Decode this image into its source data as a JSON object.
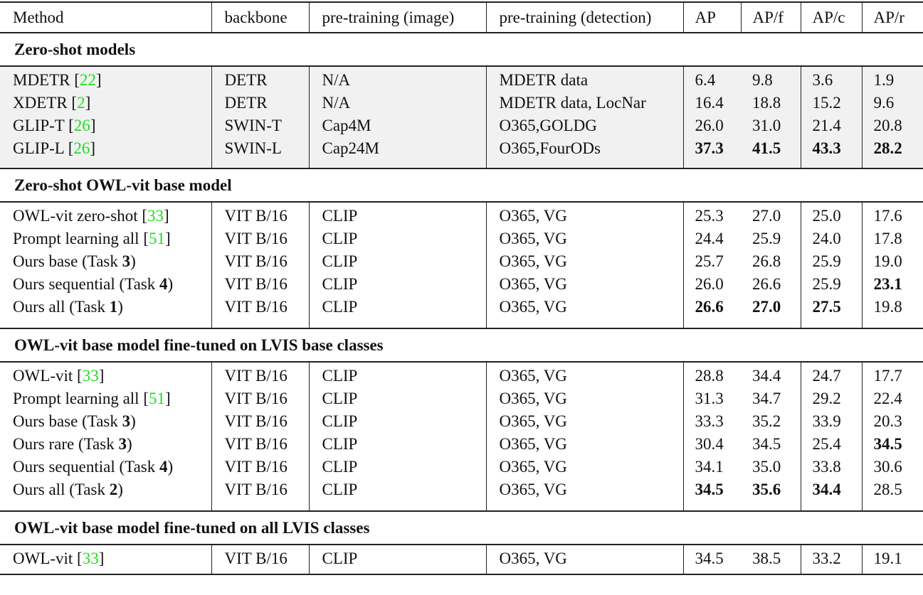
{
  "headers": [
    "Method",
    "backbone",
    "pre-training (image)",
    "pre-training (detection)",
    "AP",
    "AP/f",
    "AP/c",
    "AP/r"
  ],
  "ref_color": "#22dd22",
  "sections": [
    {
      "title": "Zero-shot models",
      "shaded": true,
      "rows": [
        {
          "method": [
            {
              "t": "MDETR ["
            },
            {
              "ref": "22"
            },
            {
              "t": "]"
            }
          ],
          "backbone": "DETR",
          "pre_image": "N/A",
          "pre_detection": "MDETR data",
          "values": [
            "6.4",
            "9.8",
            "3.6",
            "1.9"
          ],
          "bold": [
            false,
            false,
            false,
            false
          ]
        },
        {
          "method": [
            {
              "t": "XDETR ["
            },
            {
              "ref": "2"
            },
            {
              "t": "]"
            }
          ],
          "backbone": "DETR",
          "pre_image": "N/A",
          "pre_detection": "MDETR data, LocNar",
          "values": [
            "16.4",
            "18.8",
            "15.2",
            "9.6"
          ],
          "bold": [
            false,
            false,
            false,
            false
          ]
        },
        {
          "method": [
            {
              "t": "GLIP-T ["
            },
            {
              "ref": "26"
            },
            {
              "t": "]"
            }
          ],
          "backbone": "SWIN-T",
          "pre_image": "Cap4M",
          "pre_detection": "O365,GOLDG",
          "values": [
            "26.0",
            "31.0",
            "21.4",
            "20.8"
          ],
          "bold": [
            false,
            false,
            false,
            false
          ]
        },
        {
          "method": [
            {
              "t": "GLIP-L ["
            },
            {
              "ref": "26"
            },
            {
              "t": "]"
            }
          ],
          "backbone": "SWIN-L",
          "pre_image": "Cap24M",
          "pre_detection": "O365,FourODs",
          "values": [
            "37.3",
            "41.5",
            "43.3",
            "28.2"
          ],
          "bold": [
            true,
            true,
            true,
            true
          ]
        }
      ]
    },
    {
      "title": "Zero-shot OWL-vit base model",
      "shaded": false,
      "rows": [
        {
          "method": [
            {
              "t": "OWL-vit zero-shot ["
            },
            {
              "ref": "33"
            },
            {
              "t": "]"
            }
          ],
          "backbone": "VIT B/16",
          "pre_image": "CLIP",
          "pre_detection": "O365, VG",
          "values": [
            "25.3",
            "27.0",
            "25.0",
            "17.6"
          ],
          "bold": [
            false,
            false,
            false,
            false
          ]
        },
        {
          "method": [
            {
              "t": "Prompt learning all ["
            },
            {
              "ref": "51"
            },
            {
              "t": "]"
            }
          ],
          "backbone": "VIT B/16",
          "pre_image": "CLIP",
          "pre_detection": "O365, VG",
          "values": [
            "24.4",
            "25.9",
            "24.0",
            "17.8"
          ],
          "bold": [
            false,
            false,
            false,
            false
          ]
        },
        {
          "method": [
            {
              "t": "Ours base (Task "
            },
            {
              "b": "3"
            },
            {
              "t": ")"
            }
          ],
          "backbone": "VIT B/16",
          "pre_image": "CLIP",
          "pre_detection": "O365, VG",
          "values": [
            "25.7",
            "26.8",
            "25.9",
            "19.0"
          ],
          "bold": [
            false,
            false,
            false,
            false
          ]
        },
        {
          "method": [
            {
              "t": "Ours sequential (Task "
            },
            {
              "b": "4"
            },
            {
              "t": ")"
            }
          ],
          "backbone": "VIT B/16",
          "pre_image": "CLIP",
          "pre_detection": "O365, VG",
          "values": [
            "26.0",
            "26.6",
            "25.9",
            "23.1"
          ],
          "bold": [
            false,
            false,
            false,
            true
          ]
        },
        {
          "method": [
            {
              "t": "Ours all (Task "
            },
            {
              "b": "1"
            },
            {
              "t": ")"
            }
          ],
          "backbone": "VIT B/16",
          "pre_image": "CLIP",
          "pre_detection": "O365, VG",
          "values": [
            "26.6",
            "27.0",
            "27.5",
            "19.8"
          ],
          "bold": [
            true,
            true,
            true,
            false
          ]
        }
      ]
    },
    {
      "title": "OWL-vit base model fine-tuned on LVIS base classes",
      "shaded": false,
      "rows": [
        {
          "method": [
            {
              "t": "OWL-vit ["
            },
            {
              "ref": "33"
            },
            {
              "t": "]"
            }
          ],
          "backbone": "VIT B/16",
          "pre_image": "CLIP",
          "pre_detection": "O365, VG",
          "values": [
            "28.8",
            "34.4",
            "24.7",
            "17.7"
          ],
          "bold": [
            false,
            false,
            false,
            false
          ]
        },
        {
          "method": [
            {
              "t": "Prompt learning all ["
            },
            {
              "ref": "51"
            },
            {
              "t": "]"
            }
          ],
          "backbone": "VIT B/16",
          "pre_image": "CLIP",
          "pre_detection": "O365, VG",
          "values": [
            "31.3",
            "34.7",
            "29.2",
            "22.4"
          ],
          "bold": [
            false,
            false,
            false,
            false
          ]
        },
        {
          "method": [
            {
              "t": "Ours base (Task "
            },
            {
              "b": "3"
            },
            {
              "t": ")"
            }
          ],
          "backbone": "VIT B/16",
          "pre_image": "CLIP",
          "pre_detection": "O365, VG",
          "values": [
            "33.3",
            "35.2",
            "33.9",
            "20.3"
          ],
          "bold": [
            false,
            false,
            false,
            false
          ]
        },
        {
          "method": [
            {
              "t": "Ours rare (Task "
            },
            {
              "b": "3"
            },
            {
              "t": ")"
            }
          ],
          "backbone": "VIT B/16",
          "pre_image": "CLIP",
          "pre_detection": "O365, VG",
          "values": [
            "30.4",
            "34.5",
            "25.4",
            "34.5"
          ],
          "bold": [
            false,
            false,
            false,
            true
          ]
        },
        {
          "method": [
            {
              "t": "Ours sequential (Task "
            },
            {
              "b": "4"
            },
            {
              "t": ")"
            }
          ],
          "backbone": "VIT B/16",
          "pre_image": "CLIP",
          "pre_detection": "O365, VG",
          "values": [
            "34.1",
            "35.0",
            "33.8",
            "30.6"
          ],
          "bold": [
            false,
            false,
            false,
            false
          ]
        },
        {
          "method": [
            {
              "t": "Ours all (Task "
            },
            {
              "b": "2"
            },
            {
              "t": ")"
            }
          ],
          "backbone": "VIT B/16",
          "pre_image": "CLIP",
          "pre_detection": "O365, VG",
          "values": [
            "34.5",
            "35.6",
            "34.4",
            "28.5"
          ],
          "bold": [
            true,
            true,
            true,
            false
          ]
        }
      ]
    },
    {
      "title": "OWL-vit base model fine-tuned on all LVIS classes",
      "shaded": false,
      "rows": [
        {
          "method": [
            {
              "t": "OWL-vit ["
            },
            {
              "ref": "33"
            },
            {
              "t": "]"
            }
          ],
          "backbone": "VIT B/16",
          "pre_image": "CLIP",
          "pre_detection": "O365, VG",
          "values": [
            "34.5",
            "38.5",
            "33.2",
            "19.1"
          ],
          "bold": [
            false,
            false,
            false,
            false
          ]
        }
      ]
    }
  ]
}
